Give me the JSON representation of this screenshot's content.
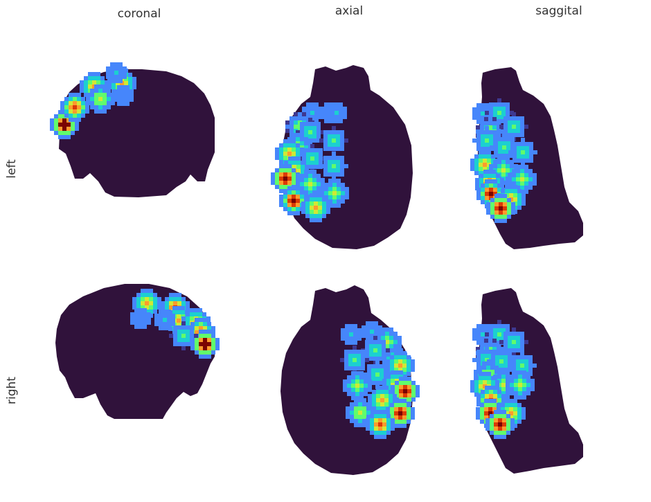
{
  "columns": [
    {
      "id": "coronal",
      "label": "coronal"
    },
    {
      "id": "axial",
      "label": "axial"
    },
    {
      "id": "saggital",
      "label": "saggital"
    }
  ],
  "rows": [
    {
      "id": "left",
      "label": "left"
    },
    {
      "id": "right",
      "label": "right"
    }
  ],
  "colors": {
    "background": "#ffffff",
    "brain": "#30123b",
    "colormap": [
      "#3e3891",
      "#4686fb",
      "#1ccfd1",
      "#61fc6c",
      "#d1e835",
      "#fe9b2d",
      "#db3a07",
      "#7a0403"
    ]
  }
}
